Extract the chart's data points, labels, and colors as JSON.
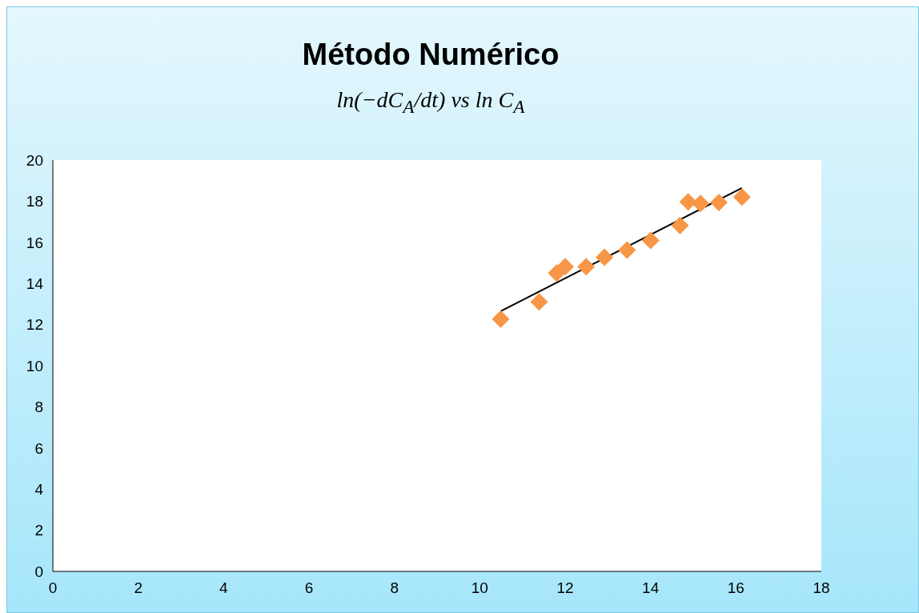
{
  "chart_data": {
    "type": "scatter",
    "title": "Método Numérico",
    "subtitle": "ln(−dC$_{A}$/dt)   vs   ln C$_{A}$",
    "xlim": [
      0,
      18
    ],
    "xticks": [
      0,
      2,
      4,
      6,
      8,
      10,
      12,
      14,
      16,
      18
    ],
    "ylim": [
      0,
      20
    ],
    "yticks": [
      0,
      2,
      4,
      6,
      8,
      10,
      12,
      14,
      16,
      18,
      20
    ],
    "grid": false,
    "legend": false,
    "marker": "diamond",
    "series": [
      {
        "color": "#f79646",
        "x": [
          10.49,
          11.39,
          11.8,
          12.0,
          12.49,
          12.92,
          13.45,
          14.0,
          14.69,
          14.88,
          15.17,
          15.6,
          16.14
        ],
        "values": [
          12.27,
          13.1,
          14.5,
          14.82,
          14.82,
          15.27,
          15.62,
          16.09,
          16.82,
          17.97,
          17.89,
          17.94,
          18.2
        ]
      },
      {
        "type": "line",
        "color": "#000000",
        "marker": "none",
        "line_style": "solid",
        "x": [
          10.49,
          16.14
        ],
        "values": [
          12.65,
          18.64
        ]
      }
    ]
  }
}
